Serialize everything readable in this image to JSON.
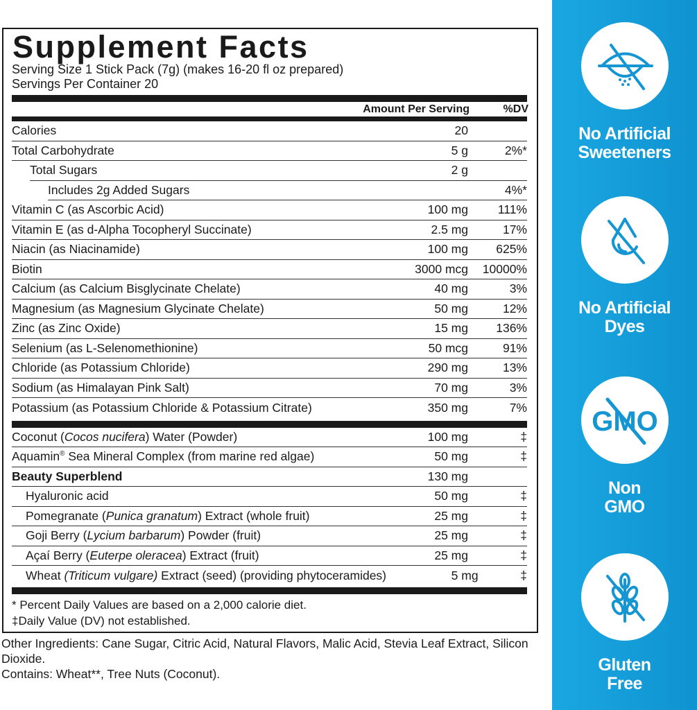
{
  "title": "Supplement Facts",
  "serving_size": "Serving Size 1 Stick Pack (7g) (makes 16-20 fl oz prepared)",
  "servings_per_container": "Servings Per Container 20",
  "header": {
    "amount": "Amount Per Serving",
    "dv": "%DV"
  },
  "nutrients": [
    {
      "name": "Calories",
      "amount": "20",
      "dv": "",
      "indent": 0
    },
    {
      "name": "Total Carbohydrate",
      "amount": "5 g",
      "dv": "2%*",
      "indent": 0
    },
    {
      "name": "Total Sugars",
      "amount": "2 g",
      "dv": "",
      "indent": 1
    },
    {
      "name": "Includes 2g Added Sugars",
      "amount": "",
      "dv": "4%*",
      "indent": 2
    },
    {
      "name": "Vitamin C (as Ascorbic Acid)",
      "amount": "100 mg",
      "dv": "111%",
      "indent": 0
    },
    {
      "name": "Vitamin E (as d-Alpha Tocopheryl Succinate)",
      "amount": "2.5 mg",
      "dv": "17%",
      "indent": 0
    },
    {
      "name": "Niacin (as Niacinamide)",
      "amount": "100 mg",
      "dv": "625%",
      "indent": 0
    },
    {
      "name": "Biotin",
      "amount": "3000 mcg",
      "dv": "10000%",
      "indent": 0
    },
    {
      "name": "Calcium (as Calcium Bisglycinate Chelate)",
      "amount": "40 mg",
      "dv": "3%",
      "indent": 0
    },
    {
      "name": "Magnesium (as Magnesium Glycinate Chelate)",
      "amount": "50 mg",
      "dv": "12%",
      "indent": 0
    },
    {
      "name": "Zinc (as Zinc Oxide)",
      "amount": "15 mg",
      "dv": "136%",
      "indent": 0
    },
    {
      "name": "Selenium (as L-Selenomethionine)",
      "amount": "50 mcg",
      "dv": "91%",
      "indent": 0
    },
    {
      "name": "Chloride (as Potassium Chloride)",
      "amount": "290 mg",
      "dv": "13%",
      "indent": 0
    },
    {
      "name": "Sodium (as Himalayan Pink Salt)",
      "amount": "70 mg",
      "dv": "3%",
      "indent": 0
    },
    {
      "name": "Potassium (as Potassium Chloride & Potassium Citrate)",
      "amount": "350 mg",
      "dv": "7%",
      "indent": 0
    }
  ],
  "other_rows": [
    {
      "pre": "Coconut (",
      "ital": "Cocos nucifera",
      "post": ") Water (Powder)",
      "amount": "100 mg",
      "dv": "‡",
      "indent": 0
    },
    {
      "pre": "Aquamin",
      "sup": "®",
      "post": " Sea Mineral Complex (from marine red algae)",
      "amount": "50 mg",
      "dv": "‡",
      "indent": 0
    },
    {
      "pre": "Beauty Superblend",
      "amount": "130 mg",
      "dv": "",
      "indent": 0,
      "bold": true
    },
    {
      "pre": "Hyaluronic acid",
      "amount": "50 mg",
      "dv": "‡",
      "indent": 1
    },
    {
      "pre": "Pomegranate (",
      "ital": "Punica granatum",
      "post": ") Extract (whole fruit)",
      "amount": "25 mg",
      "dv": "‡",
      "indent": 1
    },
    {
      "pre": "Goji Berry (",
      "ital": "Lycium barbarum",
      "post": ") Powder (fruit)",
      "amount": "25 mg",
      "dv": "‡",
      "indent": 1
    },
    {
      "pre": "Açaí Berry (",
      "ital": "Euterpe oleracea",
      "post": ") Extract (fruit)",
      "amount": "25 mg",
      "dv": "‡",
      "indent": 1
    },
    {
      "pre": "Wheat ",
      "ital": "(Triticum vulgare)",
      "post": " Extract (seed) (providing phytoceramides)",
      "amount": "5 mg",
      "dv": "‡",
      "indent": 1
    }
  ],
  "footnotes": [
    "* Percent Daily Values are based on a 2,000 calorie diet.",
    "‡Daily Value (DV) not established."
  ],
  "other_ingredients": "Other Ingredients: Cane Sugar, Citric Acid, Natural Flavors, Malic Acid, Stevia Leaf Extract, Silicon Dioxide.",
  "contains": "Contains: Wheat**, Tree Nuts (Coconut).",
  "badges": [
    {
      "icon": "no-sweetener-icon",
      "l1": "No Artificial",
      "l2": "Sweeteners"
    },
    {
      "icon": "no-dye-icon",
      "l1": "No Artificial",
      "l2": "Dyes"
    },
    {
      "icon": "non-gmo-icon",
      "l1": "Non",
      "l2": "GMO"
    },
    {
      "icon": "gluten-free-icon",
      "l1": "Gluten",
      "l2": "Free"
    }
  ],
  "colors": {
    "panel": "#1aa7e2",
    "icon": "#1596d2"
  }
}
